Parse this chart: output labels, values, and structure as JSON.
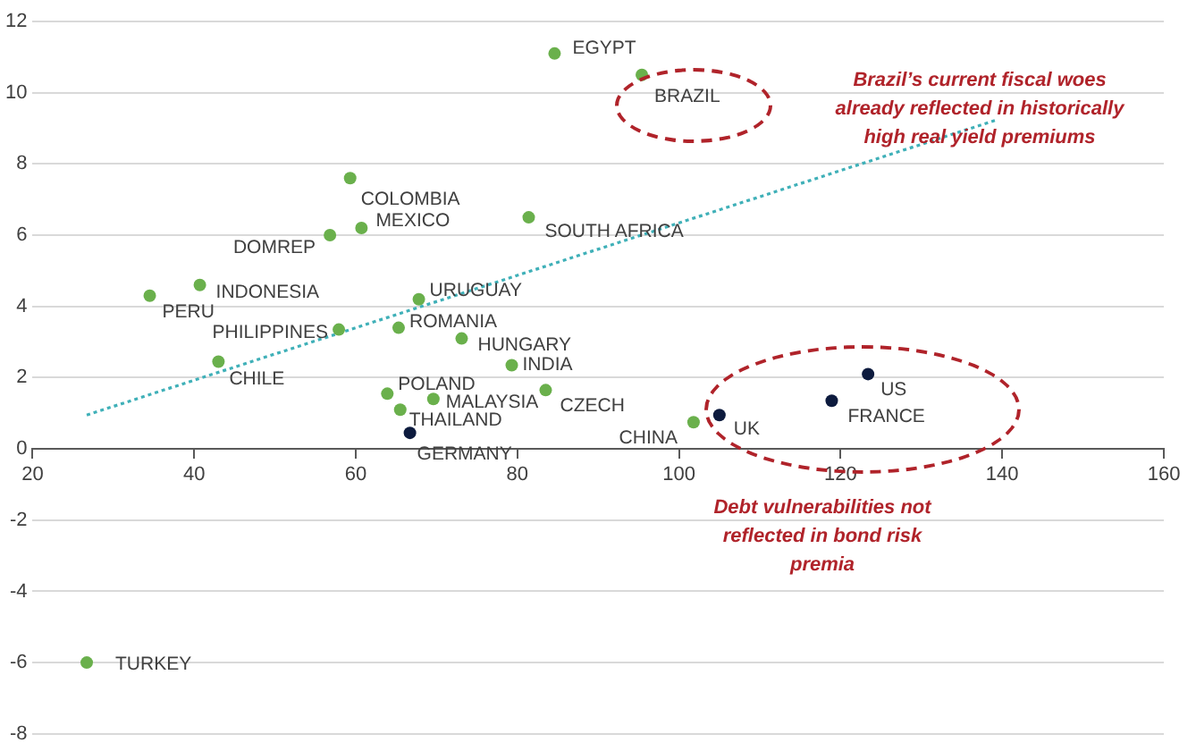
{
  "chart_data": {
    "type": "scatter",
    "xlim": [
      20,
      160
    ],
    "xticks": [
      20,
      40,
      60,
      80,
      100,
      120,
      140,
      160
    ],
    "ylim": [
      -8,
      12
    ],
    "yticks": [
      -8,
      -6,
      -4,
      -2,
      0,
      2,
      4,
      6,
      8,
      10,
      12
    ],
    "grid": "y",
    "legend": false,
    "marker": "circle",
    "series": [
      {
        "name": "EGYPT",
        "color": "#6ab04c",
        "x": [
          84.6
        ],
        "values": [
          11.1
        ]
      },
      {
        "name": "BRAZIL",
        "color": "#6ab04c",
        "x": [
          95.4
        ],
        "values": [
          10.5
        ]
      },
      {
        "name": "COLOMBIA",
        "color": "#6ab04c",
        "x": [
          59.3
        ],
        "values": [
          7.6
        ]
      },
      {
        "name": "MEXICO",
        "color": "#6ab04c",
        "x": [
          60.7
        ],
        "values": [
          6.2
        ]
      },
      {
        "name": "DOMREP",
        "color": "#6ab04c",
        "x": [
          56.8
        ],
        "values": [
          6.0
        ]
      },
      {
        "name": "SOUTH AFRICA",
        "color": "#6ab04c",
        "x": [
          81.4
        ],
        "values": [
          6.5
        ]
      },
      {
        "name": "INDONESIA",
        "color": "#6ab04c",
        "x": [
          40.7
        ],
        "values": [
          4.6
        ]
      },
      {
        "name": "PERU",
        "color": "#6ab04c",
        "x": [
          34.5
        ],
        "values": [
          4.3
        ]
      },
      {
        "name": "URUGUAY",
        "color": "#6ab04c",
        "x": [
          67.8
        ],
        "values": [
          4.2
        ]
      },
      {
        "name": "PHILIPPINES",
        "color": "#6ab04c",
        "x": [
          57.9
        ],
        "values": [
          3.35
        ]
      },
      {
        "name": "ROMANIA",
        "color": "#6ab04c",
        "x": [
          65.3
        ],
        "values": [
          3.4
        ]
      },
      {
        "name": "HUNGARY",
        "color": "#6ab04c",
        "x": [
          73.1
        ],
        "values": [
          3.1
        ]
      },
      {
        "name": "INDIA",
        "color": "#6ab04c",
        "x": [
          79.3
        ],
        "values": [
          2.35
        ]
      },
      {
        "name": "CHILE",
        "color": "#6ab04c",
        "x": [
          43.0
        ],
        "values": [
          2.45
        ]
      },
      {
        "name": "POLAND",
        "color": "#6ab04c",
        "x": [
          63.9
        ],
        "values": [
          1.55
        ]
      },
      {
        "name": "MALAYSIA",
        "color": "#6ab04c",
        "x": [
          69.6
        ],
        "values": [
          1.4
        ]
      },
      {
        "name": "THAILAND",
        "color": "#6ab04c",
        "x": [
          65.5
        ],
        "values": [
          1.1
        ]
      },
      {
        "name": "GERMANY",
        "color": "#0d1b3e",
        "x": [
          66.7
        ],
        "values": [
          0.45
        ]
      },
      {
        "name": "CZECH",
        "color": "#6ab04c",
        "x": [
          83.5
        ],
        "values": [
          1.65
        ]
      },
      {
        "name": "CHINA",
        "color": "#6ab04c",
        "x": [
          101.8
        ],
        "values": [
          0.75
        ]
      },
      {
        "name": "UK",
        "color": "#0d1b3e",
        "x": [
          105.0
        ],
        "values": [
          0.95
        ]
      },
      {
        "name": "FRANCE",
        "color": "#0d1b3e",
        "x": [
          118.9
        ],
        "values": [
          1.35
        ]
      },
      {
        "name": "US",
        "color": "#0d1b3e",
        "x": [
          123.4
        ],
        "values": [
          2.1
        ]
      },
      {
        "name": "TURKEY",
        "color": "#6ab04c",
        "x": [
          26.7
        ],
        "values": [
          -6.0
        ]
      },
      {
        "type": "line",
        "color": "#3fb0b8",
        "line_style": "dotted",
        "marker": "none",
        "x": [
          26.7,
          139.5
        ],
        "values": [
          0.95,
          9.25
        ]
      }
    ],
    "annotations": [
      "Brazil’s current fiscal woes already reflected in historically high real yield premiums",
      "Debt vulnerabilities not reflected in bond risk premia"
    ]
  }
}
